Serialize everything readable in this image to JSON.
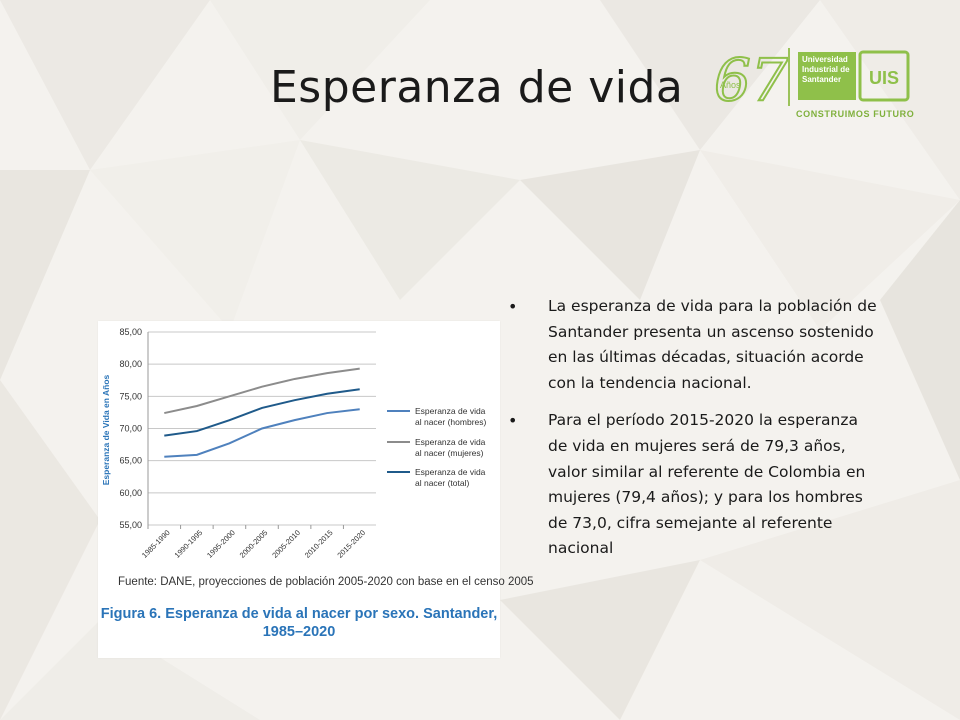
{
  "slide": {
    "title": "Esperanza de vida",
    "logo": {
      "anniversary_number": "67",
      "anniversary_word": "Años",
      "university_lines": [
        "Universidad",
        "Industrial de",
        "Santander"
      ],
      "monogram": "UIS",
      "tagline": "CONSTRUIMOS FUTURO",
      "color": "#8fc04a"
    },
    "bullets": [
      "La esperanza de vida para la población de Santander presenta un ascenso sostenido en las últimas décadas, situación acorde con la tendencia nacional.",
      "Para el período 2015-2020 la esperanza de vida en mujeres será de 79,3 años, valor similar al referente de Colombia en mujeres (79,4 años); y para los hombres de 73,0, cifra semejante al referente nacional"
    ],
    "figure": {
      "source": "Fuente: DANE, proyecciones de población 2005-2020 con base en el censo 2005",
      "caption_line1": "Figura 6.  Esperanza de vida al nacer por sexo. Santander,",
      "caption_line2": "1985–2020"
    }
  },
  "chart_data": {
    "type": "line",
    "categories": [
      "1985-1990",
      "1990-1995",
      "1995-2000",
      "2000-2005",
      "2005-2010",
      "2010-2015",
      "2015-2020"
    ],
    "ylabel": "Esperanza de Vida en Años",
    "ylim": [
      55,
      85
    ],
    "ytick_labels": [
      "55,00",
      "60,00",
      "65,00",
      "70,00",
      "75,00",
      "80,00",
      "85,00"
    ],
    "grid": true,
    "legend_position": "right",
    "series": [
      {
        "name_lines": [
          "Esperanza de vida",
          "al nacer (hombres)"
        ],
        "color": "#4f81bd",
        "values": [
          65.6,
          65.9,
          67.7,
          70.0,
          71.3,
          72.4,
          73.0
        ]
      },
      {
        "name_lines": [
          "Esperanza de vida",
          "al nacer (mujeres)"
        ],
        "color": "#8c8c8c",
        "values": [
          72.4,
          73.5,
          75.0,
          76.5,
          77.7,
          78.6,
          79.3
        ]
      },
      {
        "name_lines": [
          "Esperanza de vida",
          "al nacer (total)"
        ],
        "color": "#1f5a8a",
        "values": [
          68.9,
          69.6,
          71.3,
          73.2,
          74.4,
          75.4,
          76.1
        ]
      }
    ]
  }
}
